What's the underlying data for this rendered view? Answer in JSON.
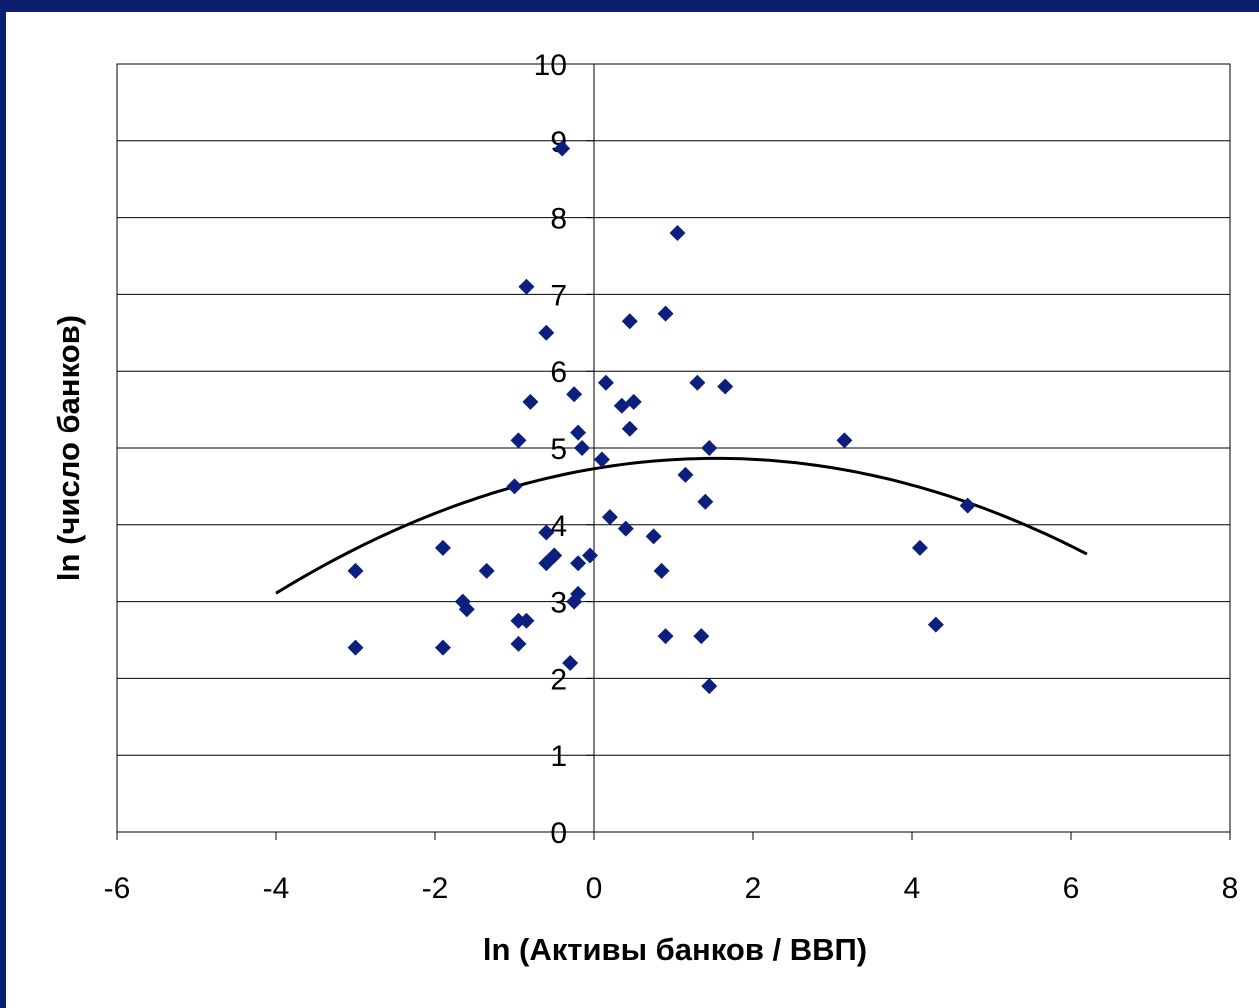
{
  "chart_data": {
    "type": "scatter",
    "title": "",
    "xlabel": "ln (Активы банков / ВВП)",
    "ylabel": "ln (число банков)",
    "xlim": [
      -6,
      8
    ],
    "ylim": [
      0,
      10
    ],
    "xticks": [
      -6,
      -4,
      -2,
      0,
      2,
      4,
      6,
      8
    ],
    "yticks": [
      0,
      1,
      2,
      3,
      4,
      5,
      6,
      7,
      8,
      9,
      10
    ],
    "x_tick_labels": [
      "-6",
      "-4",
      "-2",
      "0",
      "2",
      "4",
      "6",
      "8"
    ],
    "y_tick_labels": [
      "0",
      "1",
      "2",
      "3",
      "4",
      "5",
      "6",
      "7",
      "8",
      "9",
      "10"
    ],
    "grid": "horizontal",
    "legend": "none",
    "marker_color": "#0c1f7e",
    "trend_color": "#000000",
    "points": [
      {
        "x": -3.0,
        "y": 3.4
      },
      {
        "x": -3.0,
        "y": 2.4
      },
      {
        "x": -1.9,
        "y": 3.7
      },
      {
        "x": -1.9,
        "y": 2.4
      },
      {
        "x": -1.65,
        "y": 3.0
      },
      {
        "x": -1.6,
        "y": 2.9
      },
      {
        "x": -1.35,
        "y": 3.4
      },
      {
        "x": -1.0,
        "y": 4.5
      },
      {
        "x": -0.95,
        "y": 5.1
      },
      {
        "x": -0.95,
        "y": 2.75
      },
      {
        "x": -0.95,
        "y": 2.45
      },
      {
        "x": -0.85,
        "y": 2.75
      },
      {
        "x": -0.85,
        "y": 7.1
      },
      {
        "x": -0.8,
        "y": 5.6
      },
      {
        "x": -0.6,
        "y": 6.5
      },
      {
        "x": -0.6,
        "y": 3.9
      },
      {
        "x": -0.6,
        "y": 3.5
      },
      {
        "x": -0.5,
        "y": 3.6
      },
      {
        "x": -0.4,
        "y": 8.9
      },
      {
        "x": -0.3,
        "y": 2.2
      },
      {
        "x": -0.25,
        "y": 5.7
      },
      {
        "x": -0.25,
        "y": 3.0
      },
      {
        "x": -0.2,
        "y": 5.2
      },
      {
        "x": -0.2,
        "y": 3.5
      },
      {
        "x": -0.2,
        "y": 3.1
      },
      {
        "x": -0.15,
        "y": 5.0
      },
      {
        "x": -0.05,
        "y": 3.6
      },
      {
        "x": 0.1,
        "y": 4.85
      },
      {
        "x": 0.15,
        "y": 5.85
      },
      {
        "x": 0.2,
        "y": 4.1
      },
      {
        "x": 0.35,
        "y": 5.55
      },
      {
        "x": 0.4,
        "y": 3.95
      },
      {
        "x": 0.45,
        "y": 6.65
      },
      {
        "x": 0.45,
        "y": 5.25
      },
      {
        "x": 0.5,
        "y": 5.6
      },
      {
        "x": 0.75,
        "y": 3.85
      },
      {
        "x": 0.85,
        "y": 3.4
      },
      {
        "x": 0.9,
        "y": 6.75
      },
      {
        "x": 0.9,
        "y": 2.55
      },
      {
        "x": 1.05,
        "y": 7.8
      },
      {
        "x": 1.15,
        "y": 4.65
      },
      {
        "x": 1.3,
        "y": 5.85
      },
      {
        "x": 1.35,
        "y": 2.55
      },
      {
        "x": 1.4,
        "y": 4.3
      },
      {
        "x": 1.45,
        "y": 5.0
      },
      {
        "x": 1.45,
        "y": 1.9
      },
      {
        "x": 1.65,
        "y": 5.8
      },
      {
        "x": 3.15,
        "y": 5.1
      },
      {
        "x": 4.1,
        "y": 3.7
      },
      {
        "x": 4.3,
        "y": 2.7
      },
      {
        "x": 4.7,
        "y": 4.25
      }
    ],
    "trend": {
      "type": "quadratic",
      "a": -0.0573,
      "b": 0.176,
      "c": 4.73,
      "x_start": -4.0,
      "x_end": 6.2
    }
  }
}
